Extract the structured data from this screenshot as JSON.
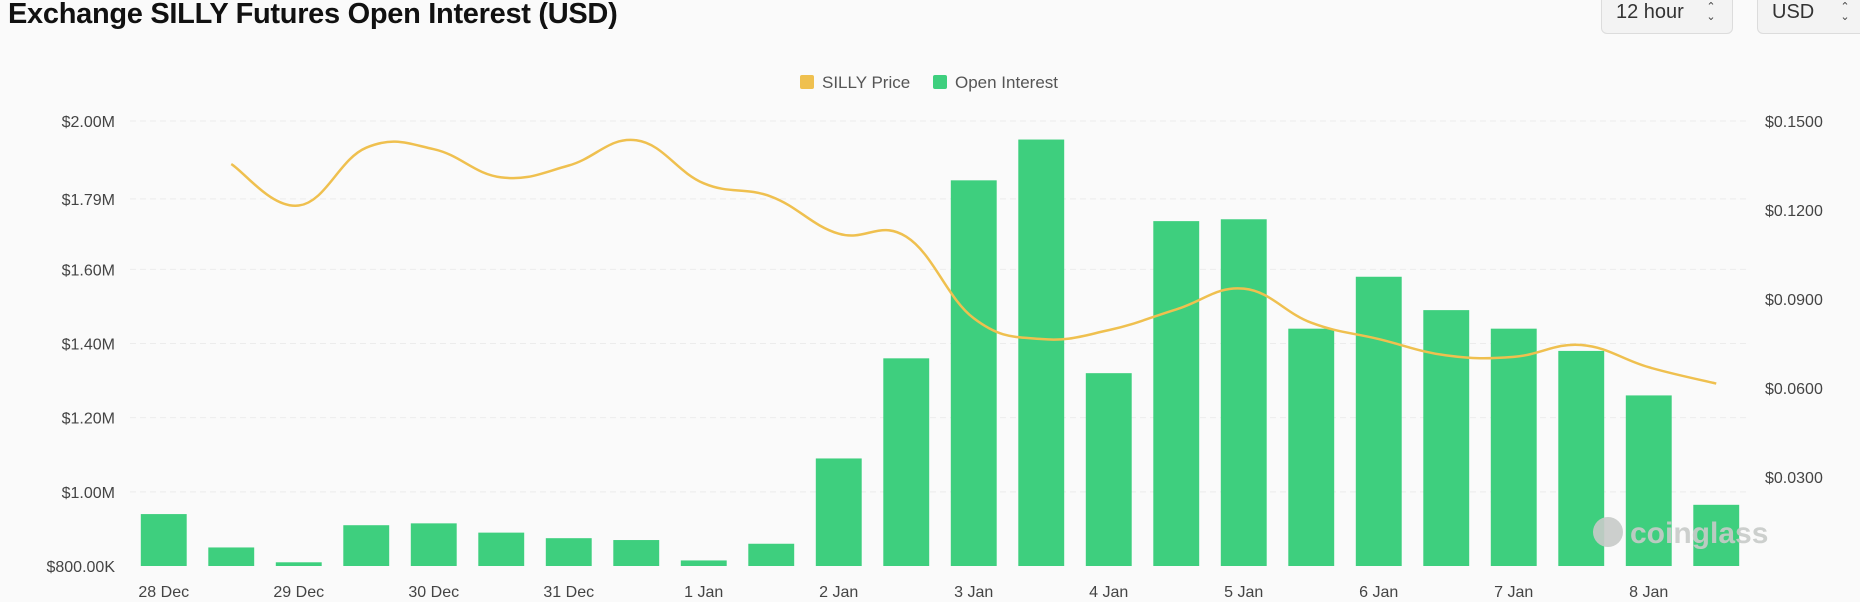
{
  "header": {
    "title": "Exchange SILLY Futures Open Interest (USD)",
    "interval_select": {
      "value": "12 hour"
    },
    "currency_select": {
      "value": "USD"
    }
  },
  "watermark": "coinglass",
  "colors": {
    "bar": "#3ecf7e",
    "price_line": "#efc04f",
    "grid": "#ececec",
    "background": "#fafafa"
  },
  "chart_data": {
    "type": "bar",
    "legend": [
      "SILLY Price",
      "Open Interest"
    ],
    "legend_placement": "top-center",
    "x_ticks": [
      "28 Dec",
      "29 Dec",
      "30 Dec",
      "31 Dec",
      "1 Jan",
      "2 Jan",
      "3 Jan",
      "4 Jan",
      "5 Jan",
      "6 Jan",
      "7 Jan",
      "8 Jan"
    ],
    "left_axis": {
      "ticks": [
        "$800.00K",
        "$1.00M",
        "$1.20M",
        "$1.40M",
        "$1.60M",
        "$1.79M",
        "$2.00M"
      ],
      "range": [
        800000,
        2000000
      ]
    },
    "right_axis": {
      "ticks": [
        "$0.0300",
        "$0.0600",
        "$0.0900",
        "$0.1200",
        "$0.1500"
      ],
      "range": [
        0,
        0.15
      ]
    },
    "series": [
      {
        "name": "Open Interest",
        "type": "bar",
        "axis": "left",
        "x": [
          "28 Dec",
          "28 Dec 12:00",
          "29 Dec",
          "29 Dec 12:00",
          "30 Dec",
          "30 Dec 12:00",
          "31 Dec",
          "31 Dec 12:00",
          "1 Jan",
          "1 Jan 12:00",
          "2 Jan",
          "2 Jan 12:00",
          "3 Jan",
          "3 Jan 12:00",
          "4 Jan",
          "4 Jan 12:00",
          "5 Jan",
          "5 Jan 12:00",
          "6 Jan",
          "6 Jan 12:00",
          "7 Jan",
          "7 Jan 12:00",
          "8 Jan",
          "8 Jan 12:00"
        ],
        "values": [
          940000,
          850000,
          810000,
          910000,
          915000,
          890000,
          875000,
          870000,
          815000,
          860000,
          1090000,
          1360000,
          1840000,
          1950000,
          1320000,
          1730000,
          1735000,
          1440000,
          1580000,
          1490000,
          1440000,
          1380000,
          1260000,
          965000
        ]
      },
      {
        "name": "SILLY Price",
        "type": "line",
        "axis": "right",
        "x": [
          "28 Dec",
          "28 Dec 12:00",
          "29 Dec",
          "29 Dec 12:00",
          "30 Dec",
          "30 Dec 12:00",
          "31 Dec",
          "31 Dec 12:00",
          "1 Jan",
          "1 Jan 12:00",
          "2 Jan",
          "2 Jan 12:00",
          "3 Jan",
          "3 Jan 12:00",
          "4 Jan",
          "4 Jan 12:00",
          "5 Jan",
          "5 Jan 12:00",
          "6 Jan",
          "6 Jan 12:00",
          "7 Jan",
          "7 Jan 12:00",
          "8 Jan",
          "8 Jan 12:00"
        ],
        "values": [
          null,
          0.1355,
          0.1215,
          0.141,
          0.1405,
          0.131,
          0.135,
          0.1435,
          0.129,
          0.1245,
          0.112,
          0.111,
          0.0835,
          0.0765,
          0.0795,
          0.0865,
          0.0935,
          0.082,
          0.0765,
          0.071,
          0.0705,
          0.0745,
          0.067,
          0.0615
        ]
      }
    ]
  }
}
